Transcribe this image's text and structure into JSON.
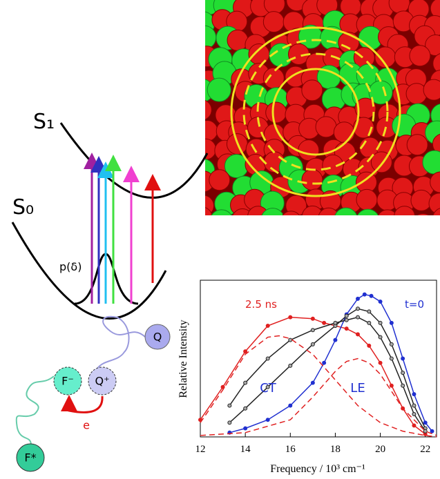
{
  "diagram": {
    "s1_label": "S₁",
    "s0_label": "S₀",
    "distribution_label": "p(δ)",
    "quencher": "Q",
    "fluorophore_anion": "F⁻",
    "quencher_cation": "Q⁺",
    "electron": "e",
    "excited_fluorophore": "F*"
  },
  "chart_data": {
    "type": "line",
    "y_label": "Relative Intensity",
    "x_label": "Frequency / 10³ cm⁻¹",
    "xlim": [
      12,
      22.5
    ],
    "xticks": [
      12,
      14,
      16,
      18,
      20,
      22
    ],
    "ylim": [
      0,
      1.1
    ],
    "series": [
      {
        "name": "2.5 ns",
        "color": "#e02020",
        "x": [
          12,
          13,
          14,
          15,
          16,
          17,
          17.5,
          18,
          18.5,
          19,
          19.5,
          20,
          20.5,
          21,
          21.5,
          22
        ],
        "values": [
          0.12,
          0.35,
          0.6,
          0.78,
          0.84,
          0.83,
          0.8,
          0.78,
          0.76,
          0.72,
          0.64,
          0.52,
          0.36,
          0.2,
          0.08,
          0.02
        ]
      },
      {
        "name": "t=0",
        "color": "#2030d0",
        "x": [
          13.3,
          14,
          15,
          16,
          17,
          17.5,
          18,
          18.5,
          19,
          19.3,
          19.6,
          20,
          20.5,
          21,
          21.5,
          22,
          22.3
        ],
        "values": [
          0.03,
          0.06,
          0.12,
          0.22,
          0.38,
          0.52,
          0.68,
          0.86,
          0.97,
          1.0,
          0.99,
          0.95,
          0.8,
          0.55,
          0.3,
          0.1,
          0.04
        ]
      },
      {
        "color": "#222222",
        "x": [
          13.3,
          14,
          15,
          16,
          17,
          18,
          18.5,
          19,
          19.5,
          20,
          20.5,
          21,
          21.5,
          22
        ],
        "values": [
          0.1,
          0.2,
          0.35,
          0.5,
          0.65,
          0.78,
          0.85,
          0.9,
          0.88,
          0.8,
          0.65,
          0.45,
          0.22,
          0.06
        ]
      },
      {
        "color": "#222222",
        "x": [
          13.3,
          14,
          15,
          16,
          17,
          18,
          18.5,
          19,
          19.5,
          20,
          20.5,
          21,
          21.5,
          22
        ],
        "values": [
          0.22,
          0.38,
          0.55,
          0.68,
          0.75,
          0.8,
          0.82,
          0.84,
          0.8,
          0.7,
          0.55,
          0.36,
          0.16,
          0.04
        ]
      },
      {
        "name": "CT",
        "color": "#e02020",
        "dashed": true,
        "x": [
          12,
          13,
          14,
          15,
          15.5,
          16,
          17,
          18,
          19,
          20,
          21,
          22,
          22.5
        ],
        "values": [
          0.1,
          0.33,
          0.58,
          0.7,
          0.71,
          0.69,
          0.58,
          0.4,
          0.22,
          0.1,
          0.04,
          0.01,
          0
        ]
      },
      {
        "name": "LE",
        "color": "#e02020",
        "dashed": true,
        "x": [
          12,
          14,
          16,
          17,
          18,
          18.5,
          19,
          19.5,
          20,
          21,
          22,
          22.5
        ],
        "values": [
          0.01,
          0.03,
          0.12,
          0.28,
          0.46,
          0.53,
          0.55,
          0.52,
          0.44,
          0.2,
          0.04,
          0.01
        ]
      }
    ]
  }
}
